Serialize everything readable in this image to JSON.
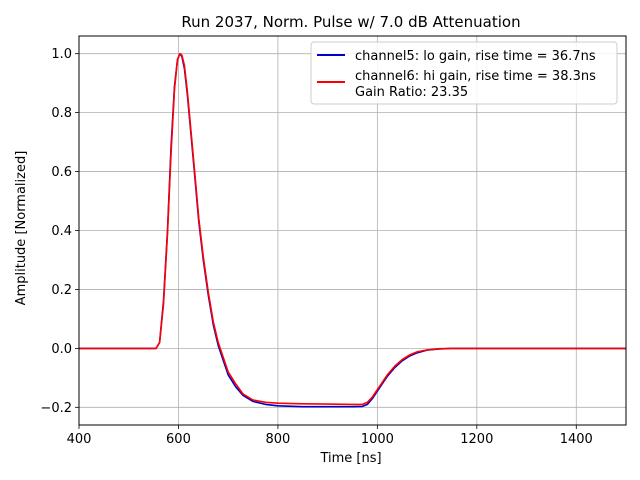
{
  "chart_data": {
    "type": "line",
    "title": "Run 2037, Norm. Pulse w/ 7.0 dB Attenuation",
    "xlabel": "Time [ns]",
    "ylabel": "Amplitude [Normalized]",
    "xlim": [
      400,
      1500
    ],
    "ylim": [
      -0.26,
      1.06
    ],
    "xticks": [
      400,
      600,
      800,
      1000,
      1200,
      1400
    ],
    "yticks": [
      -0.2,
      0.0,
      0.2,
      0.4,
      0.6,
      0.8,
      1.0
    ],
    "grid": true,
    "legend_position": "top-right",
    "legend_note": "Gain Ratio: 23.35",
    "series": [
      {
        "name": "channel5: lo gain, rise time = 36.7ns",
        "color": "#0000cc",
        "x": [
          400,
          500,
          555,
          562,
          570,
          578,
          585,
          592,
          598,
          603,
          607,
          612,
          618,
          625,
          633,
          641,
          650,
          660,
          670,
          680,
          690,
          700,
          715,
          730,
          750,
          775,
          800,
          850,
          900,
          950,
          970,
          980,
          990,
          1000,
          1010,
          1020,
          1035,
          1050,
          1065,
          1080,
          1100,
          1125,
          1150,
          1200,
          1300,
          1400,
          1500
        ],
        "y": [
          0.0,
          0.0,
          0.0,
          0.02,
          0.16,
          0.4,
          0.68,
          0.89,
          0.98,
          1.0,
          0.99,
          0.95,
          0.86,
          0.73,
          0.58,
          0.43,
          0.3,
          0.18,
          0.08,
          0.01,
          -0.04,
          -0.09,
          -0.13,
          -0.16,
          -0.18,
          -0.19,
          -0.195,
          -0.198,
          -0.198,
          -0.198,
          -0.197,
          -0.19,
          -0.17,
          -0.145,
          -0.12,
          -0.095,
          -0.065,
          -0.042,
          -0.026,
          -0.015,
          -0.006,
          -0.002,
          0.0,
          0.0,
          0.0,
          0.0,
          0.0
        ]
      },
      {
        "name": "channel6: hi gain, rise time = 38.3ns",
        "color": "#ff0000",
        "x": [
          400,
          500,
          555,
          562,
          570,
          578,
          585,
          592,
          598,
          603,
          607,
          612,
          618,
          625,
          633,
          641,
          650,
          660,
          670,
          680,
          690,
          700,
          715,
          730,
          750,
          775,
          800,
          850,
          900,
          950,
          970,
          980,
          990,
          1000,
          1010,
          1020,
          1035,
          1050,
          1065,
          1080,
          1100,
          1125,
          1150,
          1200,
          1300,
          1400,
          1500
        ],
        "y": [
          0.0,
          0.0,
          0.0,
          0.02,
          0.15,
          0.39,
          0.66,
          0.88,
          0.98,
          1.0,
          0.995,
          0.96,
          0.87,
          0.74,
          0.59,
          0.44,
          0.31,
          0.19,
          0.09,
          0.02,
          -0.03,
          -0.08,
          -0.12,
          -0.155,
          -0.175,
          -0.183,
          -0.186,
          -0.188,
          -0.189,
          -0.19,
          -0.19,
          -0.183,
          -0.165,
          -0.14,
          -0.115,
          -0.09,
          -0.06,
          -0.038,
          -0.022,
          -0.012,
          -0.005,
          -0.001,
          0.0,
          0.0,
          0.0,
          0.0,
          0.0
        ]
      }
    ]
  }
}
